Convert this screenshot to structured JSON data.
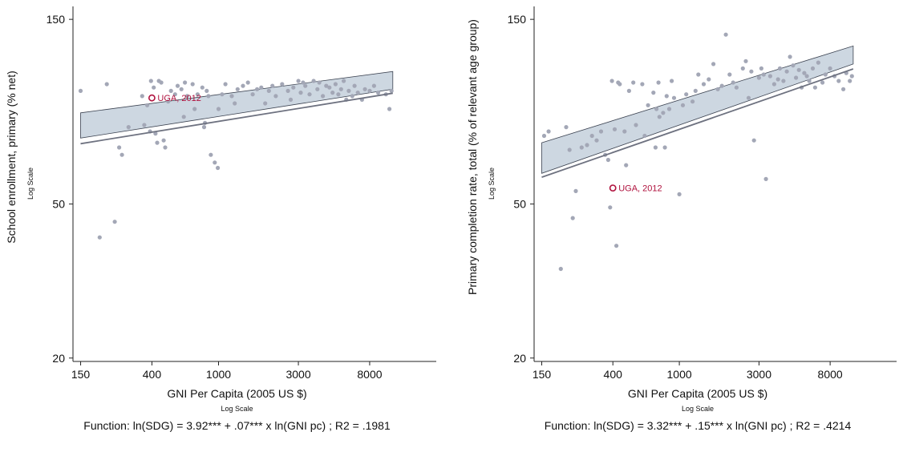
{
  "colors": {
    "points": "#a3a7b6",
    "fit_line": "#6e7280",
    "ci_band": "#cdd7e1",
    "ci_edge": "#3b4250",
    "highlight": "#b0123e",
    "axis": "#222222"
  },
  "chart_data": [
    {
      "type": "scatter",
      "title": "",
      "xlabel": "GNI Per Capita (2005 US $)",
      "xscale_note": "Log Scale",
      "ylabel": "School enrollment, primary (% net)",
      "yscale_note": "Log Scale",
      "x_scale": "log",
      "y_scale": "log",
      "xlim": [
        135,
        20000
      ],
      "ylim": [
        19.6,
        162
      ],
      "x_ticks": [
        150,
        400,
        1000,
        3000,
        8000
      ],
      "y_ticks": [
        20,
        50,
        150
      ],
      "grid": false,
      "function_text": "Function: ln(SDG) = 3.92*** + .07*** x ln(GNI pc) ; R2 = .1981",
      "fit": {
        "intercept": 3.92,
        "slope": 0.07,
        "x_range": [
          150,
          11000
        ]
      },
      "ci_band": {
        "x": [
          150,
          11000
        ],
        "lower": [
          74,
          99
        ],
        "upper": [
          86,
          110
        ]
      },
      "highlight": {
        "label": "UGA, 2012",
        "x": 400,
        "y": 94
      },
      "points": [
        [
          150,
          98
        ],
        [
          195,
          41
        ],
        [
          215,
          102
        ],
        [
          240,
          45
        ],
        [
          255,
          70
        ],
        [
          265,
          67
        ],
        [
          290,
          79
        ],
        [
          350,
          95
        ],
        [
          360,
          80
        ],
        [
          375,
          90
        ],
        [
          390,
          77
        ],
        [
          395,
          104
        ],
        [
          410,
          100
        ],
        [
          420,
          76
        ],
        [
          430,
          72
        ],
        [
          440,
          104
        ],
        [
          455,
          103
        ],
        [
          470,
          73
        ],
        [
          480,
          70
        ],
        [
          500,
          92
        ],
        [
          520,
          98
        ],
        [
          550,
          96
        ],
        [
          570,
          101
        ],
        [
          600,
          99
        ],
        [
          620,
          84
        ],
        [
          630,
          103
        ],
        [
          650,
          95
        ],
        [
          700,
          102
        ],
        [
          720,
          88
        ],
        [
          750,
          96
        ],
        [
          800,
          100
        ],
        [
          820,
          79
        ],
        [
          830,
          81
        ],
        [
          850,
          98
        ],
        [
          870,
          95
        ],
        [
          900,
          67
        ],
        [
          950,
          64
        ],
        [
          990,
          62
        ],
        [
          1000,
          88
        ],
        [
          1050,
          96
        ],
        [
          1100,
          102
        ],
        [
          1200,
          95
        ],
        [
          1250,
          91
        ],
        [
          1300,
          99
        ],
        [
          1400,
          101
        ],
        [
          1500,
          103
        ],
        [
          1600,
          96
        ],
        [
          1700,
          99
        ],
        [
          1800,
          100
        ],
        [
          1900,
          91
        ],
        [
          2000,
          98
        ],
        [
          2100,
          101
        ],
        [
          2200,
          95
        ],
        [
          2400,
          102
        ],
        [
          2600,
          98
        ],
        [
          2700,
          93
        ],
        [
          2800,
          100
        ],
        [
          3000,
          104
        ],
        [
          3100,
          97
        ],
        [
          3200,
          103
        ],
        [
          3300,
          101
        ],
        [
          3500,
          96
        ],
        [
          3700,
          104
        ],
        [
          3900,
          99
        ],
        [
          4000,
          103
        ],
        [
          4200,
          95
        ],
        [
          4400,
          101
        ],
        [
          4600,
          100
        ],
        [
          4800,
          97
        ],
        [
          5000,
          102
        ],
        [
          5200,
          96
        ],
        [
          5400,
          99
        ],
        [
          5600,
          104
        ],
        [
          5800,
          93
        ],
        [
          6000,
          98
        ],
        [
          6300,
          95
        ],
        [
          6500,
          101
        ],
        [
          6800,
          97
        ],
        [
          7200,
          93
        ],
        [
          7500,
          99
        ],
        [
          8000,
          98
        ],
        [
          8500,
          101
        ],
        [
          9000,
          97
        ],
        [
          10000,
          96
        ],
        [
          10500,
          88
        ],
        [
          10800,
          98
        ]
      ]
    },
    {
      "type": "scatter",
      "title": "",
      "xlabel": "GNI Per Capita (2005 US $)",
      "xscale_note": "Log Scale",
      "ylabel": "Primary completion rate, total (% of relevant age group)",
      "yscale_note": "Log Scale",
      "x_scale": "log",
      "y_scale": "log",
      "xlim": [
        135,
        20000
      ],
      "ylim": [
        19.6,
        162
      ],
      "x_ticks": [
        150,
        400,
        1000,
        3000,
        8000
      ],
      "y_ticks": [
        20,
        50,
        150
      ],
      "grid": false,
      "function_text": "Function: ln(SDG) = 3.32*** + .15*** x ln(GNI pc) ; R2 = .4214",
      "fit": {
        "intercept": 3.32,
        "slope": 0.15,
        "x_range": [
          150,
          11000
        ]
      },
      "ci_band": {
        "x": [
          150,
          11000
        ],
        "lower": [
          60,
          115
        ],
        "upper": [
          72,
          128
        ]
      },
      "highlight": {
        "label": "UGA, 2012",
        "x": 400,
        "y": 55
      },
      "points": [
        [
          155,
          75
        ],
        [
          165,
          77
        ],
        [
          195,
          34
        ],
        [
          210,
          79
        ],
        [
          220,
          69
        ],
        [
          230,
          46
        ],
        [
          240,
          54
        ],
        [
          260,
          70
        ],
        [
          280,
          71
        ],
        [
          300,
          75
        ],
        [
          320,
          73
        ],
        [
          340,
          77
        ],
        [
          360,
          67
        ],
        [
          375,
          65
        ],
        [
          385,
          49
        ],
        [
          395,
          104
        ],
        [
          410,
          78
        ],
        [
          420,
          39
        ],
        [
          430,
          103
        ],
        [
          440,
          102
        ],
        [
          470,
          77
        ],
        [
          480,
          63
        ],
        [
          500,
          98
        ],
        [
          530,
          103
        ],
        [
          550,
          80
        ],
        [
          600,
          102
        ],
        [
          620,
          75
        ],
        [
          650,
          90
        ],
        [
          700,
          97
        ],
        [
          720,
          70
        ],
        [
          730,
          88
        ],
        [
          750,
          103
        ],
        [
          760,
          84
        ],
        [
          800,
          86
        ],
        [
          820,
          70
        ],
        [
          840,
          95
        ],
        [
          870,
          88
        ],
        [
          900,
          104
        ],
        [
          930,
          94
        ],
        [
          1000,
          53
        ],
        [
          1050,
          90
        ],
        [
          1100,
          96
        ],
        [
          1200,
          92
        ],
        [
          1250,
          98
        ],
        [
          1300,
          108
        ],
        [
          1400,
          102
        ],
        [
          1500,
          105
        ],
        [
          1600,
          115
        ],
        [
          1700,
          99
        ],
        [
          1800,
          101
        ],
        [
          1900,
          137
        ],
        [
          2000,
          108
        ],
        [
          2100,
          103
        ],
        [
          2200,
          100
        ],
        [
          2400,
          112
        ],
        [
          2500,
          117
        ],
        [
          2600,
          94
        ],
        [
          2700,
          110
        ],
        [
          2800,
          73
        ],
        [
          3000,
          106
        ],
        [
          3100,
          112
        ],
        [
          3200,
          108
        ],
        [
          3300,
          58
        ],
        [
          3500,
          107
        ],
        [
          3700,
          102
        ],
        [
          3900,
          105
        ],
        [
          4000,
          112
        ],
        [
          4200,
          104
        ],
        [
          4400,
          110
        ],
        [
          4600,
          120
        ],
        [
          4800,
          114
        ],
        [
          5000,
          106
        ],
        [
          5200,
          111
        ],
        [
          5400,
          100
        ],
        [
          5600,
          109
        ],
        [
          5800,
          107
        ],
        [
          6000,
          104
        ],
        [
          6300,
          112
        ],
        [
          6500,
          100
        ],
        [
          6800,
          116
        ],
        [
          7200,
          103
        ],
        [
          7500,
          108
        ],
        [
          8000,
          112
        ],
        [
          8500,
          107
        ],
        [
          9000,
          104
        ],
        [
          9600,
          99
        ],
        [
          10000,
          109
        ],
        [
          10500,
          104
        ],
        [
          10800,
          107
        ]
      ]
    }
  ]
}
